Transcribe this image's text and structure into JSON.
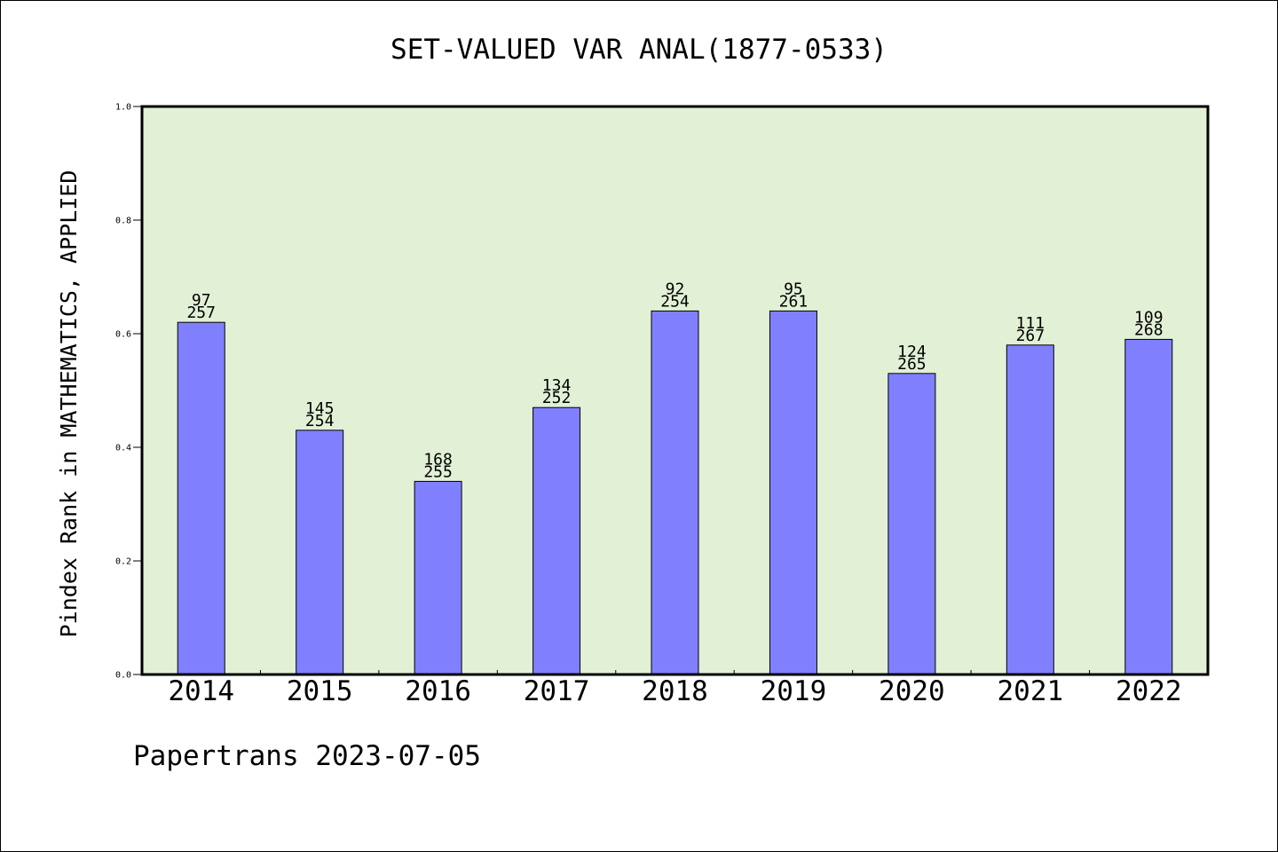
{
  "chart_data": {
    "type": "bar",
    "title": "SET-VALUED VAR ANAL(1877-0533)",
    "xlabel": "",
    "ylabel": "Pindex Rank in MATHEMATICS, APPLIED",
    "ylim": [
      0,
      1.0
    ],
    "yticks": [
      "0.0",
      "0.2",
      "0.4",
      "0.6",
      "0.8",
      "1.0"
    ],
    "grid": false,
    "legend": "none",
    "categories": [
      "2014",
      "2015",
      "2016",
      "2017",
      "2018",
      "2019",
      "2020",
      "2021",
      "2022"
    ],
    "values": [
      0.62,
      0.43,
      0.34,
      0.47,
      0.64,
      0.64,
      0.53,
      0.58,
      0.59
    ],
    "label_top": [
      "97",
      "145",
      "168",
      "134",
      "92",
      "95",
      "124",
      "111",
      "109"
    ],
    "label_bottom": [
      "257",
      "254",
      "255",
      "252",
      "254",
      "261",
      "265",
      "267",
      "268"
    ],
    "colors": {
      "bar": "#8080ff",
      "plot_bg": "#e2f0d6",
      "axis": "#000000"
    }
  },
  "footer": "Papertrans 2023-07-05"
}
